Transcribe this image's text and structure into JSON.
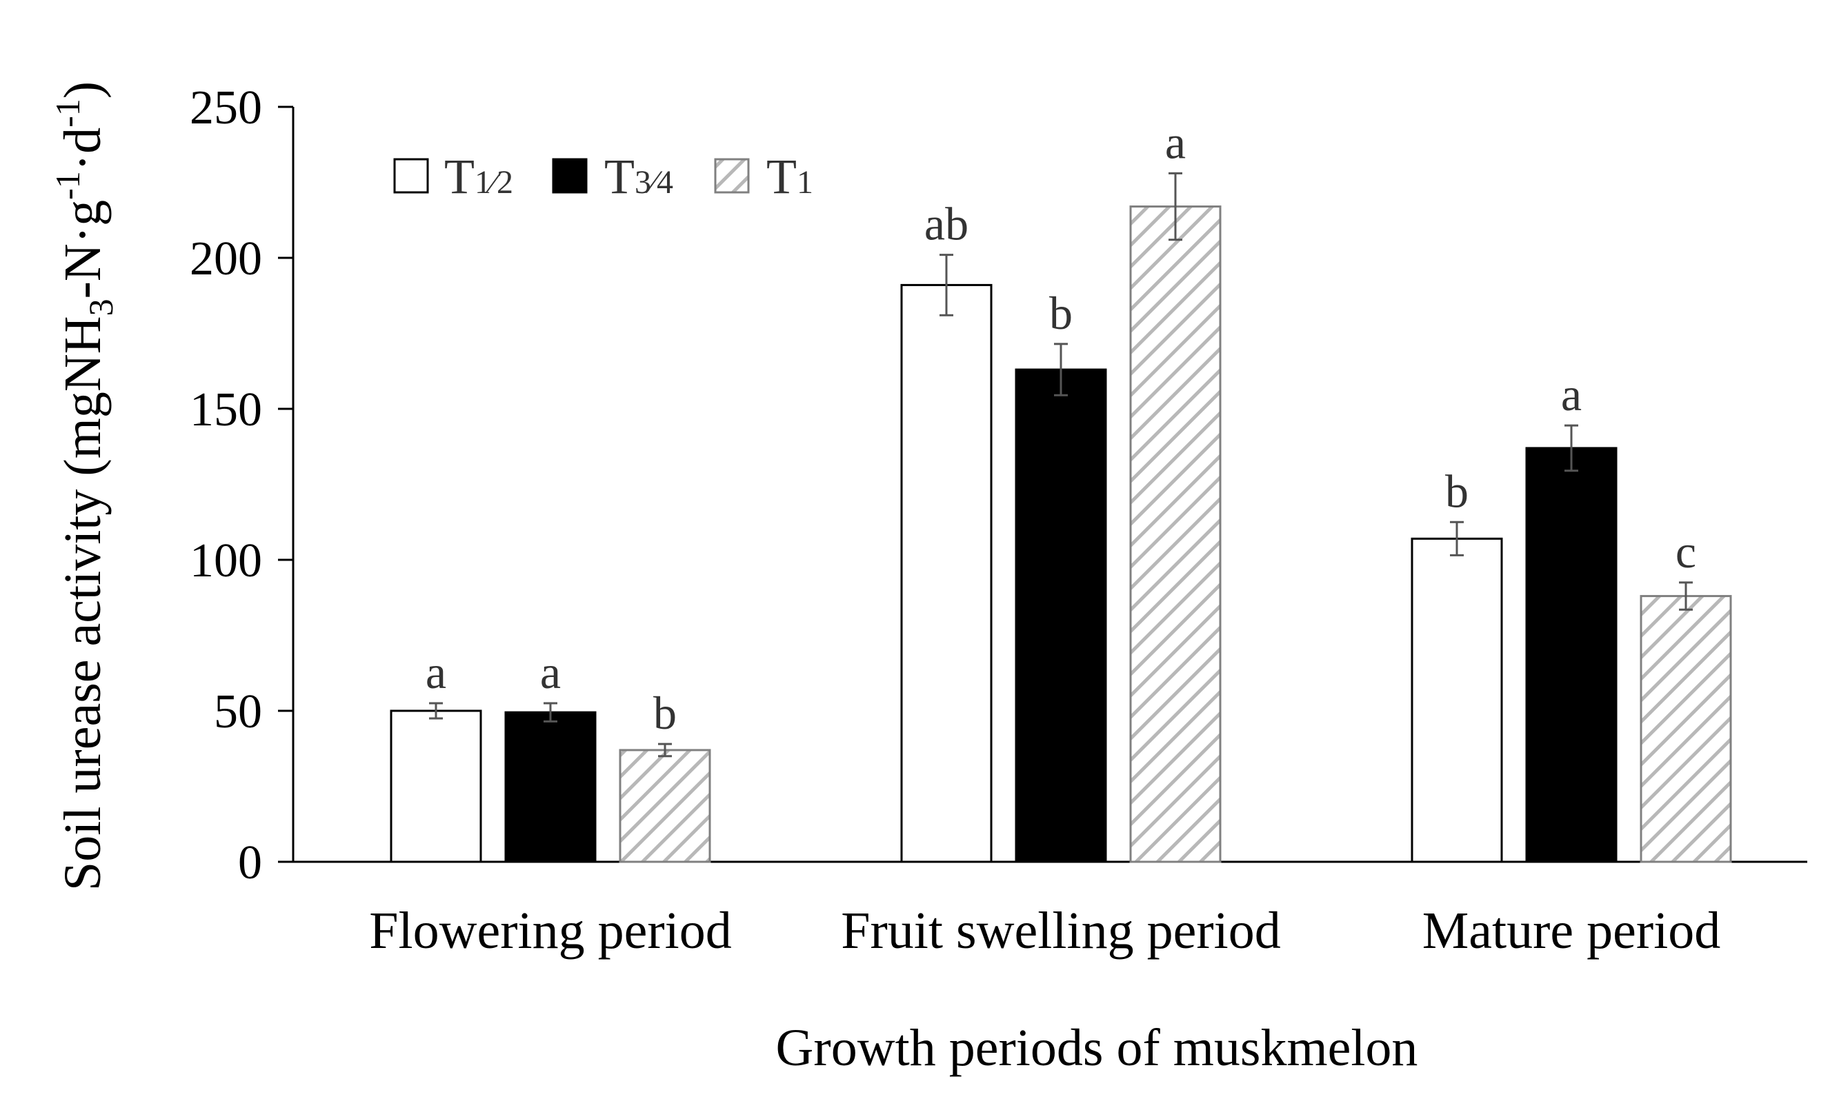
{
  "chart_data": {
    "type": "bar",
    "title": "",
    "xlabel": "Growth periods of muskmelon",
    "ylabel": "Soil urease activity (mgNH3-N·g-1·d-1)",
    "ylabel_parts": {
      "before_sub1": "Soil urease activity (mgNH",
      "sub1": "3",
      "between": "-N·g",
      "sup1": "-1",
      "between2": "·d",
      "sup2": "-1",
      "after": ")"
    },
    "ylim": [
      0,
      250
    ],
    "yticks": [
      0,
      50,
      100,
      150,
      200,
      250
    ],
    "ytick_labels": [
      "0",
      "50",
      "100",
      "150",
      "200",
      "250"
    ],
    "categories": [
      "Flowering period",
      "Fruit swelling period",
      "Mature period"
    ],
    "series": [
      {
        "name": "T1⁄2",
        "legend_main": "T",
        "legend_sub": "1⁄2",
        "style": "white",
        "values": [
          50,
          191,
          107
        ],
        "errors": [
          2.5,
          10,
          5.5
        ],
        "labels": [
          "a",
          "ab",
          "b"
        ]
      },
      {
        "name": "T3⁄4",
        "legend_main": "T",
        "legend_sub": "3⁄4",
        "style": "black",
        "values": [
          49.5,
          163,
          137
        ],
        "errors": [
          3,
          8.5,
          7.5
        ],
        "labels": [
          "a",
          "b",
          "a"
        ]
      },
      {
        "name": "T1",
        "legend_main": "T",
        "legend_sub": "1",
        "style": "hatch",
        "values": [
          37,
          217,
          88
        ],
        "errors": [
          2,
          11,
          4.5
        ],
        "labels": [
          "b",
          "a",
          "c"
        ]
      }
    ],
    "legend_position": "top-left",
    "grid": false
  },
  "colors": {
    "axis": "#000000",
    "bar_edge": "#000000",
    "black_fill": "#000000",
    "white_fill": "#ffffff",
    "hatch_line": "#b8b8b8",
    "hatch_edge": "#808080",
    "error_bar": "#555555"
  }
}
